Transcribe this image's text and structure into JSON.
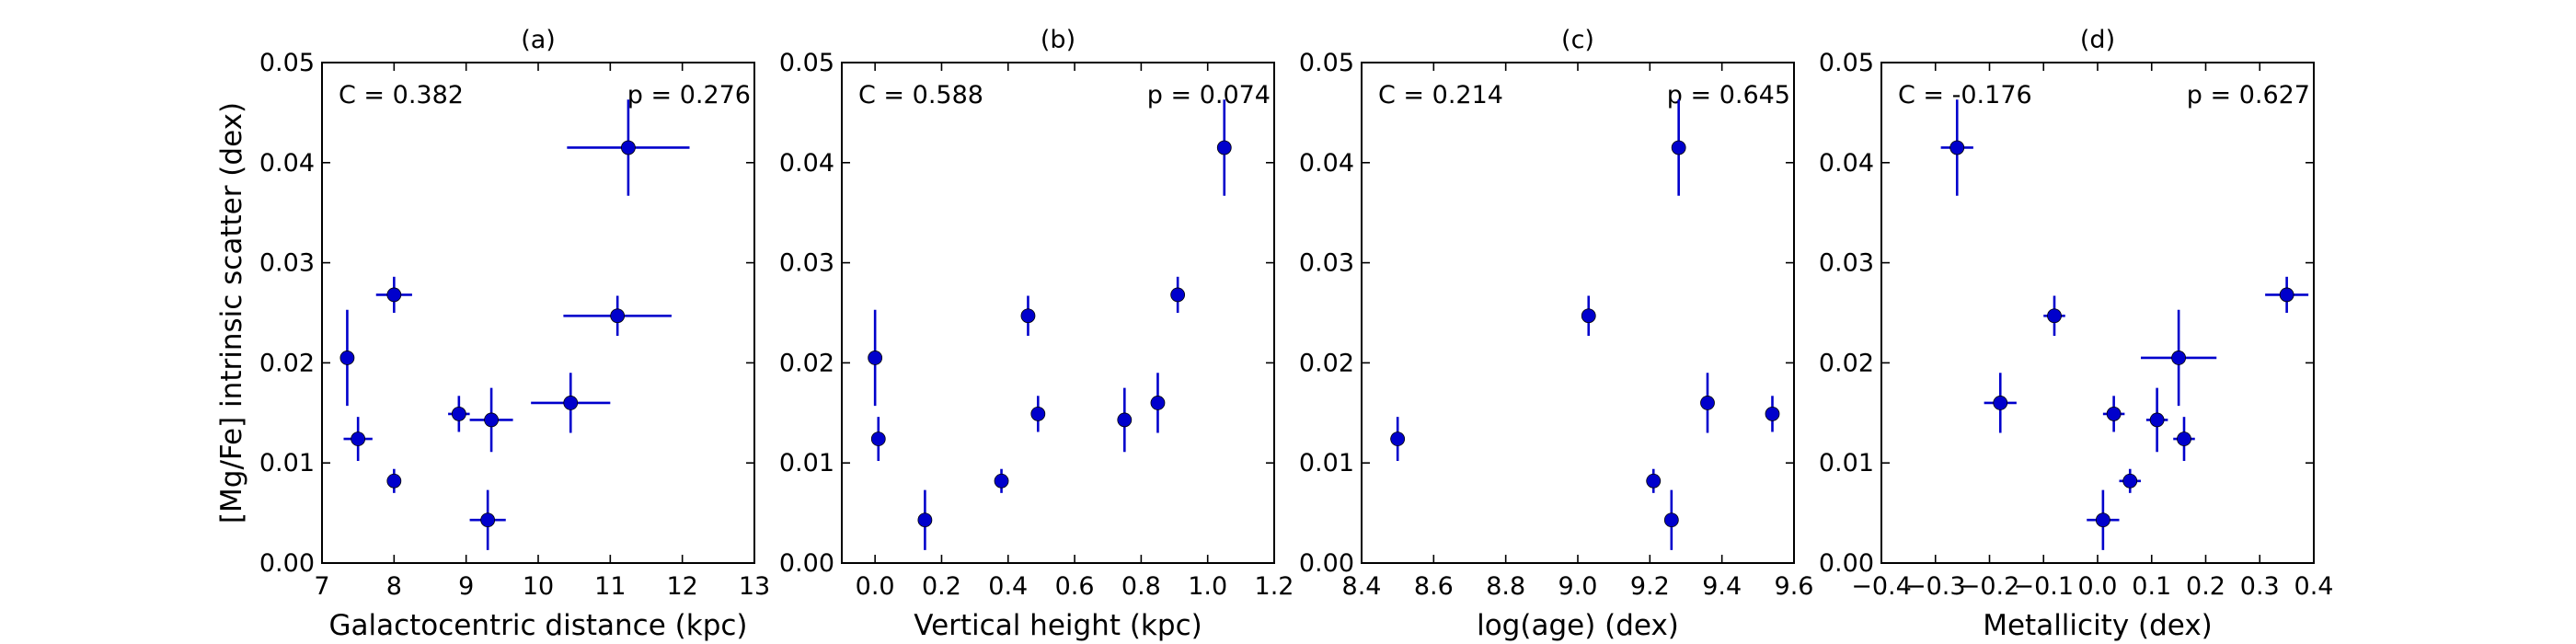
{
  "chart_data": [
    {
      "type": "scatter",
      "title": "(a)",
      "xlabel": "Galactocentric distance (kpc)",
      "ylabel": "[Mg/Fe] intrinsic scatter (dex)",
      "xlim": [
        7,
        13
      ],
      "ylim": [
        0.0,
        0.05
      ],
      "xticks": [
        7,
        8,
        9,
        10,
        11,
        12,
        13
      ],
      "xtick_labels": [
        "7",
        "8",
        "9",
        "10",
        "11",
        "12",
        "13"
      ],
      "yticks": [
        0.0,
        0.01,
        0.02,
        0.03,
        0.04,
        0.05
      ],
      "ytick_labels": [
        "0.00",
        "0.01",
        "0.02",
        "0.03",
        "0.04",
        "0.05"
      ],
      "annot_c": "C = 0.382",
      "annot_p": "p = 0.276",
      "points": [
        {
          "x": 7.35,
          "y": 0.0205,
          "xerr": 0.05,
          "yerr": 0.0048
        },
        {
          "x": 7.5,
          "y": 0.0124,
          "xerr": 0.2,
          "yerr": 0.0022
        },
        {
          "x": 8.0,
          "y": 0.0268,
          "xerr": 0.25,
          "yerr": 0.0018
        },
        {
          "x": 8.0,
          "y": 0.0082,
          "xerr": 0.05,
          "yerr": 0.0012
        },
        {
          "x": 8.9,
          "y": 0.0149,
          "xerr": 0.15,
          "yerr": 0.0018
        },
        {
          "x": 9.3,
          "y": 0.0043,
          "xerr": 0.25,
          "yerr": 0.003
        },
        {
          "x": 9.35,
          "y": 0.0143,
          "xerr": 0.3,
          "yerr": 0.0032
        },
        {
          "x": 10.45,
          "y": 0.016,
          "xerr": 0.55,
          "yerr": 0.003
        },
        {
          "x": 11.1,
          "y": 0.0247,
          "xerr": 0.75,
          "yerr": 0.002
        },
        {
          "x": 11.25,
          "y": 0.0415,
          "xerr": 0.85,
          "yerr": 0.0048
        }
      ]
    },
    {
      "type": "scatter",
      "title": "(b)",
      "xlabel": "Vertical height (kpc)",
      "ylabel": "",
      "xlim": [
        -0.1,
        1.2
      ],
      "ylim": [
        0.0,
        0.05
      ],
      "xticks": [
        0.0,
        0.2,
        0.4,
        0.6,
        0.8,
        1.0,
        1.2
      ],
      "xtick_labels": [
        "0.0",
        "0.2",
        "0.4",
        "0.6",
        "0.8",
        "1.0",
        "1.2"
      ],
      "yticks": [
        0.0,
        0.01,
        0.02,
        0.03,
        0.04,
        0.05
      ],
      "ytick_labels": [
        "0.00",
        "0.01",
        "0.02",
        "0.03",
        "0.04",
        "0.05"
      ],
      "annot_c": "C = 0.588",
      "annot_p": "p = 0.074",
      "points": [
        {
          "x": 0.0,
          "y": 0.0205,
          "xerr": 0.01,
          "yerr": 0.0048
        },
        {
          "x": 0.01,
          "y": 0.0124,
          "xerr": 0.01,
          "yerr": 0.0022
        },
        {
          "x": 0.15,
          "y": 0.0043,
          "xerr": 0.01,
          "yerr": 0.003
        },
        {
          "x": 0.38,
          "y": 0.0082,
          "xerr": 0.01,
          "yerr": 0.0012
        },
        {
          "x": 0.46,
          "y": 0.0247,
          "xerr": 0.01,
          "yerr": 0.002
        },
        {
          "x": 0.49,
          "y": 0.0149,
          "xerr": 0.01,
          "yerr": 0.0018
        },
        {
          "x": 0.75,
          "y": 0.0143,
          "xerr": 0.01,
          "yerr": 0.0032
        },
        {
          "x": 0.85,
          "y": 0.016,
          "xerr": 0.01,
          "yerr": 0.003
        },
        {
          "x": 0.91,
          "y": 0.0268,
          "xerr": 0.01,
          "yerr": 0.0018
        },
        {
          "x": 1.05,
          "y": 0.0415,
          "xerr": 0.01,
          "yerr": 0.0048
        }
      ]
    },
    {
      "type": "scatter",
      "title": "(c)",
      "xlabel": "log(age) (dex)",
      "ylabel": "",
      "xlim": [
        8.4,
        9.6
      ],
      "ylim": [
        0.0,
        0.05
      ],
      "xticks": [
        8.4,
        8.6,
        8.8,
        9.0,
        9.2,
        9.4,
        9.6
      ],
      "xtick_labels": [
        "8.4",
        "8.6",
        "8.8",
        "9.0",
        "9.2",
        "9.4",
        "9.6"
      ],
      "yticks": [
        0.0,
        0.01,
        0.02,
        0.03,
        0.04,
        0.05
      ],
      "ytick_labels": [
        "0.00",
        "0.01",
        "0.02",
        "0.03",
        "0.04",
        "0.05"
      ],
      "annot_c": "C = 0.214",
      "annot_p": "p = 0.645",
      "points": [
        {
          "x": 8.5,
          "y": 0.0124,
          "xerr": 0.02,
          "yerr": 0.0022
        },
        {
          "x": 9.03,
          "y": 0.0247,
          "xerr": 0.0,
          "yerr": 0.002
        },
        {
          "x": 9.21,
          "y": 0.0082,
          "xerr": 0.02,
          "yerr": 0.0012
        },
        {
          "x": 9.26,
          "y": 0.0043,
          "xerr": 0.0,
          "yerr": 0.003
        },
        {
          "x": 9.28,
          "y": 0.0415,
          "xerr": 0.0,
          "yerr": 0.0048
        },
        {
          "x": 9.36,
          "y": 0.016,
          "xerr": 0.0,
          "yerr": 0.003
        },
        {
          "x": 9.54,
          "y": 0.0149,
          "xerr": 0.0,
          "yerr": 0.0018
        }
      ]
    },
    {
      "type": "scatter",
      "title": "(d)",
      "xlabel": "Metallicity (dex)",
      "ylabel": "",
      "xlim": [
        -0.4,
        0.4
      ],
      "ylim": [
        0.0,
        0.05
      ],
      "xticks": [
        -0.4,
        -0.3,
        -0.2,
        -0.1,
        0.0,
        0.1,
        0.2,
        0.3,
        0.4
      ],
      "xtick_labels": [
        "−0.4",
        "−0.3",
        "−0.2",
        "−0.1",
        "0.0",
        "0.1",
        "0.2",
        "0.3",
        "0.4"
      ],
      "yticks": [
        0.0,
        0.01,
        0.02,
        0.03,
        0.04,
        0.05
      ],
      "ytick_labels": [
        "0.00",
        "0.01",
        "0.02",
        "0.03",
        "0.04",
        "0.05"
      ],
      "annot_c": "C = -0.176",
      "annot_p": "p = 0.627",
      "points": [
        {
          "x": -0.26,
          "y": 0.0415,
          "xerr": 0.03,
          "yerr": 0.0048
        },
        {
          "x": -0.18,
          "y": 0.016,
          "xerr": 0.03,
          "yerr": 0.003
        },
        {
          "x": -0.08,
          "y": 0.0247,
          "xerr": 0.02,
          "yerr": 0.002
        },
        {
          "x": 0.01,
          "y": 0.0043,
          "xerr": 0.03,
          "yerr": 0.003
        },
        {
          "x": 0.03,
          "y": 0.0149,
          "xerr": 0.02,
          "yerr": 0.0018
        },
        {
          "x": 0.06,
          "y": 0.0082,
          "xerr": 0.02,
          "yerr": 0.0012
        },
        {
          "x": 0.11,
          "y": 0.0143,
          "xerr": 0.02,
          "yerr": 0.0032
        },
        {
          "x": 0.15,
          "y": 0.0205,
          "xerr": 0.07,
          "yerr": 0.0048
        },
        {
          "x": 0.16,
          "y": 0.0124,
          "xerr": 0.02,
          "yerr": 0.0022
        },
        {
          "x": 0.35,
          "y": 0.0268,
          "xerr": 0.04,
          "yerr": 0.0018
        }
      ]
    }
  ],
  "colors": {
    "marker": "#0000cc",
    "axis": "#000000"
  }
}
